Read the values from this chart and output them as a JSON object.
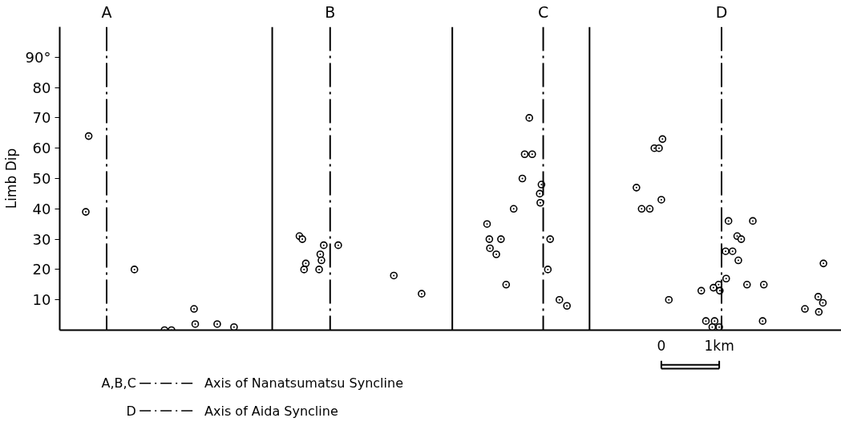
{
  "chart_data": {
    "type": "scatter",
    "ylabel": "Limb Dip",
    "xlim": [
      -10.39,
      3.11
    ],
    "ylim": [
      0,
      100
    ],
    "xticks": [
      0,
      {
        "value": 1,
        "label": "1km"
      }
    ],
    "yticks": [
      10,
      20,
      30,
      40,
      50,
      60,
      70,
      80,
      {
        "value": 90,
        "label": "90°"
      }
    ],
    "marker": "circle",
    "series": [
      {
        "color": "#000000",
        "x": [
          -9.89,
          -9.94,
          -9.1,
          -8.58,
          -8.46,
          -8.07,
          -8.05,
          -7.67,
          -7.38
        ],
        "values": [
          64,
          39,
          20,
          0,
          0,
          7,
          2,
          2,
          1
        ]
      },
      {
        "color": "#000000",
        "x": [
          -6.25,
          -6.2,
          -5.83,
          -5.58,
          -5.89,
          -5.87,
          -6.14,
          -6.17,
          -5.91,
          -4.62,
          -4.14
        ],
        "values": [
          31,
          30,
          28,
          28,
          25,
          23,
          22,
          20,
          20,
          18,
          12
        ]
      },
      {
        "color": "#000000",
        "x": [
          -2.28,
          -2.36,
          -2.23,
          -2.4,
          -2.07,
          -2.1,
          -2.09,
          -2.55,
          -3.01,
          -2.97,
          -2.77,
          -1.92,
          -2.96,
          -2.85,
          -1.96,
          -2.68,
          -1.76,
          -1.63
        ],
        "values": [
          70,
          58,
          58,
          50,
          48,
          45,
          42,
          40,
          35,
          30,
          30,
          30,
          27,
          25,
          20,
          15,
          10,
          8
        ]
      },
      {
        "color": "#000000",
        "x": [
          0.02,
          -0.12,
          -0.04,
          -0.43,
          0,
          -0.34,
          -0.2,
          1.16,
          1.58,
          1.31,
          1.38,
          1.11,
          1.23,
          1.33,
          2.8,
          1.12,
          0.99,
          1.77,
          0.9,
          1.48,
          1.01,
          0.69,
          0.13,
          2.71,
          2.79,
          2.48,
          2.72,
          0.77,
          0.92,
          1.75,
          0.88,
          1.0
        ],
        "values": [
          63,
          60,
          60,
          47,
          43,
          40,
          40,
          36,
          36,
          31,
          30,
          26,
          26,
          23,
          22,
          17,
          15,
          15,
          14,
          15,
          13,
          13,
          10,
          11,
          9,
          7,
          6,
          3,
          3,
          3,
          1,
          1
        ]
      }
    ],
    "ref_lines": [
      {
        "axis": "x",
        "value": -6.72,
        "line_style": "solid",
        "color": "#000000"
      },
      {
        "axis": "x",
        "value": -3.61,
        "line_style": "solid",
        "color": "#000000"
      },
      {
        "axis": "x",
        "value": -1.24,
        "line_style": "solid",
        "color": "#000000"
      },
      {
        "axis": "x",
        "value": -9.58,
        "line_style": "dashdot",
        "color": "#000000",
        "label": "A"
      },
      {
        "axis": "x",
        "value": -5.72,
        "line_style": "dashdot",
        "color": "#000000",
        "label": "B"
      },
      {
        "axis": "x",
        "value": -2.04,
        "line_style": "dashdot",
        "color": "#000000",
        "label": "C"
      },
      {
        "axis": "x",
        "value": 1.04,
        "line_style": "dashdot",
        "color": "#000000",
        "label": "D"
      }
    ],
    "annotations": [
      "A,B,C",
      "Axis of Nanatsumatsu Syncline",
      "D",
      "Axis of Aida Syncline"
    ]
  }
}
